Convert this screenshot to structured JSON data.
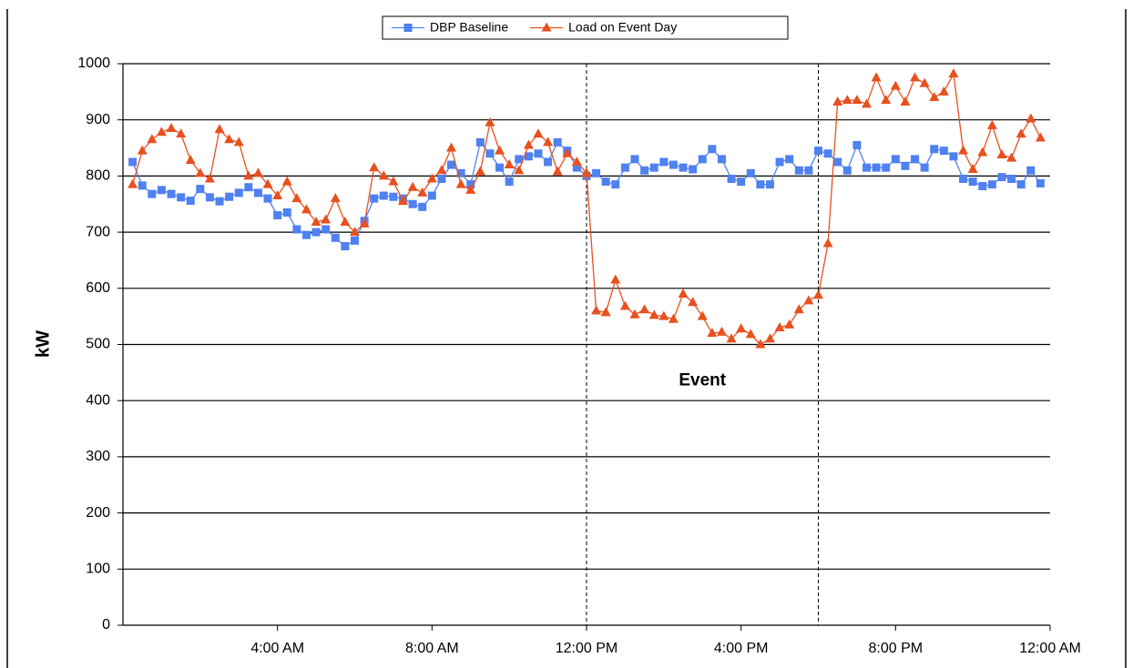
{
  "chart_data": {
    "type": "line",
    "y_label": "kW",
    "x": [
      0.25,
      0.5,
      0.75,
      1,
      1.25,
      1.5,
      1.75,
      2,
      2.25,
      2.5,
      2.75,
      3,
      3.25,
      3.5,
      3.75,
      4,
      4.25,
      4.5,
      4.75,
      5,
      5.25,
      5.5,
      5.75,
      6,
      6.25,
      6.5,
      6.75,
      7,
      7.25,
      7.5,
      7.75,
      8,
      8.25,
      8.5,
      8.75,
      9,
      9.25,
      9.5,
      9.75,
      10,
      10.25,
      10.5,
      10.75,
      11,
      11.25,
      11.5,
      11.75,
      12,
      12.25,
      12.5,
      12.75,
      13,
      13.25,
      13.5,
      13.75,
      14,
      14.25,
      14.5,
      14.75,
      15,
      15.25,
      15.5,
      15.75,
      16,
      16.25,
      16.5,
      16.75,
      17,
      17.25,
      17.5,
      17.75,
      18,
      18.25,
      18.5,
      18.75,
      19,
      19.25,
      19.5,
      19.75,
      20,
      20.25,
      20.5,
      20.75,
      21,
      21.25,
      21.5,
      21.75,
      22,
      22.25,
      22.5,
      22.75,
      23,
      23.25,
      23.5,
      23.75
    ],
    "series": [
      {
        "name": "DBP Baseline",
        "color": "#4f81f0",
        "marker": "square",
        "values": [
          825,
          783,
          768,
          775,
          768,
          762,
          756,
          777,
          762,
          755,
          763,
          770,
          780,
          770,
          760,
          730,
          735,
          705,
          695,
          700,
          705,
          690,
          675,
          685,
          720,
          760,
          765,
          763,
          760,
          750,
          745,
          765,
          795,
          820,
          805,
          785,
          860,
          840,
          815,
          790,
          830,
          835,
          840,
          825,
          860,
          845,
          815,
          800,
          805,
          790,
          785,
          815,
          830,
          810,
          815,
          825,
          820,
          815,
          812,
          830,
          848,
          830,
          795,
          790,
          805,
          785,
          785,
          825,
          830,
          810,
          810,
          845,
          840,
          825,
          810,
          855,
          815,
          815,
          815,
          830,
          818,
          830,
          815,
          848,
          845,
          835,
          795,
          790,
          782,
          785,
          798,
          795,
          785,
          810,
          787
        ]
      },
      {
        "name": "Load on Event Day",
        "color": "#e8501e",
        "marker": "triangle",
        "values": [
          785,
          845,
          865,
          878,
          885,
          875,
          828,
          805,
          795,
          883,
          865,
          860,
          800,
          805,
          785,
          765,
          790,
          760,
          740,
          718,
          722,
          760,
          718,
          700,
          715,
          815,
          800,
          790,
          755,
          780,
          770,
          795,
          810,
          850,
          785,
          775,
          808,
          895,
          845,
          820,
          810,
          855,
          875,
          860,
          808,
          840,
          825,
          805,
          560,
          557,
          615,
          568,
          553,
          562,
          552,
          550,
          545,
          590,
          575,
          550,
          520,
          522,
          510,
          528,
          518,
          500,
          510,
          530,
          535,
          562,
          578,
          588,
          680,
          932,
          935,
          935,
          928,
          975,
          935,
          960,
          932,
          975,
          965,
          940,
          950,
          982,
          845,
          812,
          842,
          890,
          838,
          832,
          875,
          902,
          868
        ]
      }
    ],
    "xlim": [
      0,
      24
    ],
    "xticks": [
      {
        "value": 4,
        "label": "4:00 AM"
      },
      {
        "value": 8,
        "label": "8:00 AM"
      },
      {
        "value": 12,
        "label": "12:00 PM"
      },
      {
        "value": 16,
        "label": "4:00 PM"
      },
      {
        "value": 20,
        "label": "8:00 PM"
      },
      {
        "value": 24,
        "label": "12:00 AM"
      }
    ],
    "ylim": [
      0,
      1000
    ],
    "yticks": [
      0,
      100,
      200,
      300,
      400,
      500,
      600,
      700,
      800,
      900,
      1000
    ],
    "grid": true,
    "event_lines": [
      12,
      18
    ],
    "annotation": {
      "text": "Event",
      "x": 15,
      "y": 435
    },
    "legend": "top"
  }
}
